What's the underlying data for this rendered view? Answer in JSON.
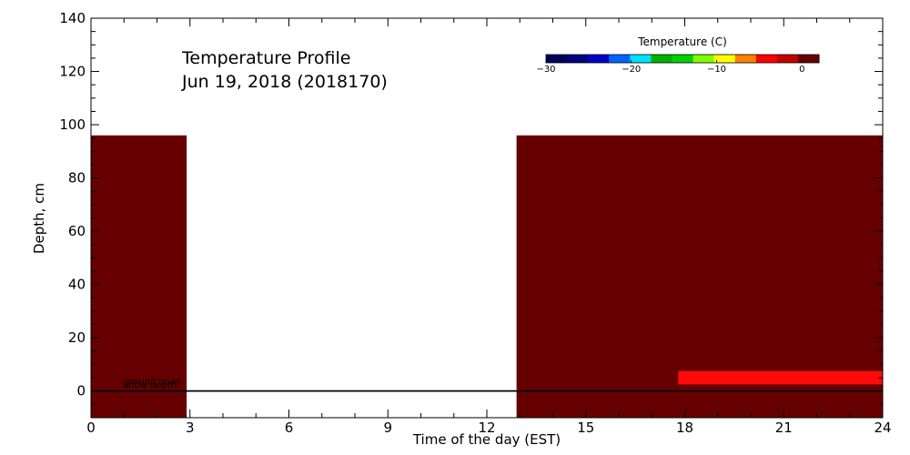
{
  "chart_data": {
    "type": "heatmap",
    "title": "Temperature Profile",
    "subtitle": "Jun 19, 2018 (2018170)",
    "xlabel": "Time of the day (EST)",
    "ylabel": "Depth, cm",
    "xlim": [
      0,
      24
    ],
    "ylim": [
      -10,
      140
    ],
    "xticks": [
      0,
      3,
      6,
      9,
      12,
      15,
      18,
      21,
      24
    ],
    "yticks": [
      0,
      20,
      40,
      60,
      80,
      100,
      120,
      140
    ],
    "colorbar": {
      "title": "Temperature (C)",
      "range": [
        -30,
        2
      ],
      "ticks": [
        -30,
        -20,
        -10,
        0
      ],
      "colors": [
        "#00005a",
        "#000080",
        "#0000c8",
        "#0064ff",
        "#00e0ff",
        "#00b000",
        "#00d000",
        "#80ff00",
        "#ffff00",
        "#ff8000",
        "#ff0000",
        "#c00000",
        "#660000"
      ]
    },
    "cells": [
      {
        "x0": 0,
        "x1": 2.9,
        "y0": -10,
        "y1": 96,
        "color": "#660000"
      },
      {
        "x0": 12.9,
        "x1": 24,
        "y0": -10,
        "y1": 96,
        "color": "#660000"
      },
      {
        "x0": 17.8,
        "x1": 24,
        "y0": 2.5,
        "y1": 7.5,
        "color": "#ff0a0a"
      }
    ],
    "lines": [
      {
        "name": "ground level",
        "y": 0
      },
      {
        "name": "snow depth",
        "y": 0
      }
    ]
  }
}
